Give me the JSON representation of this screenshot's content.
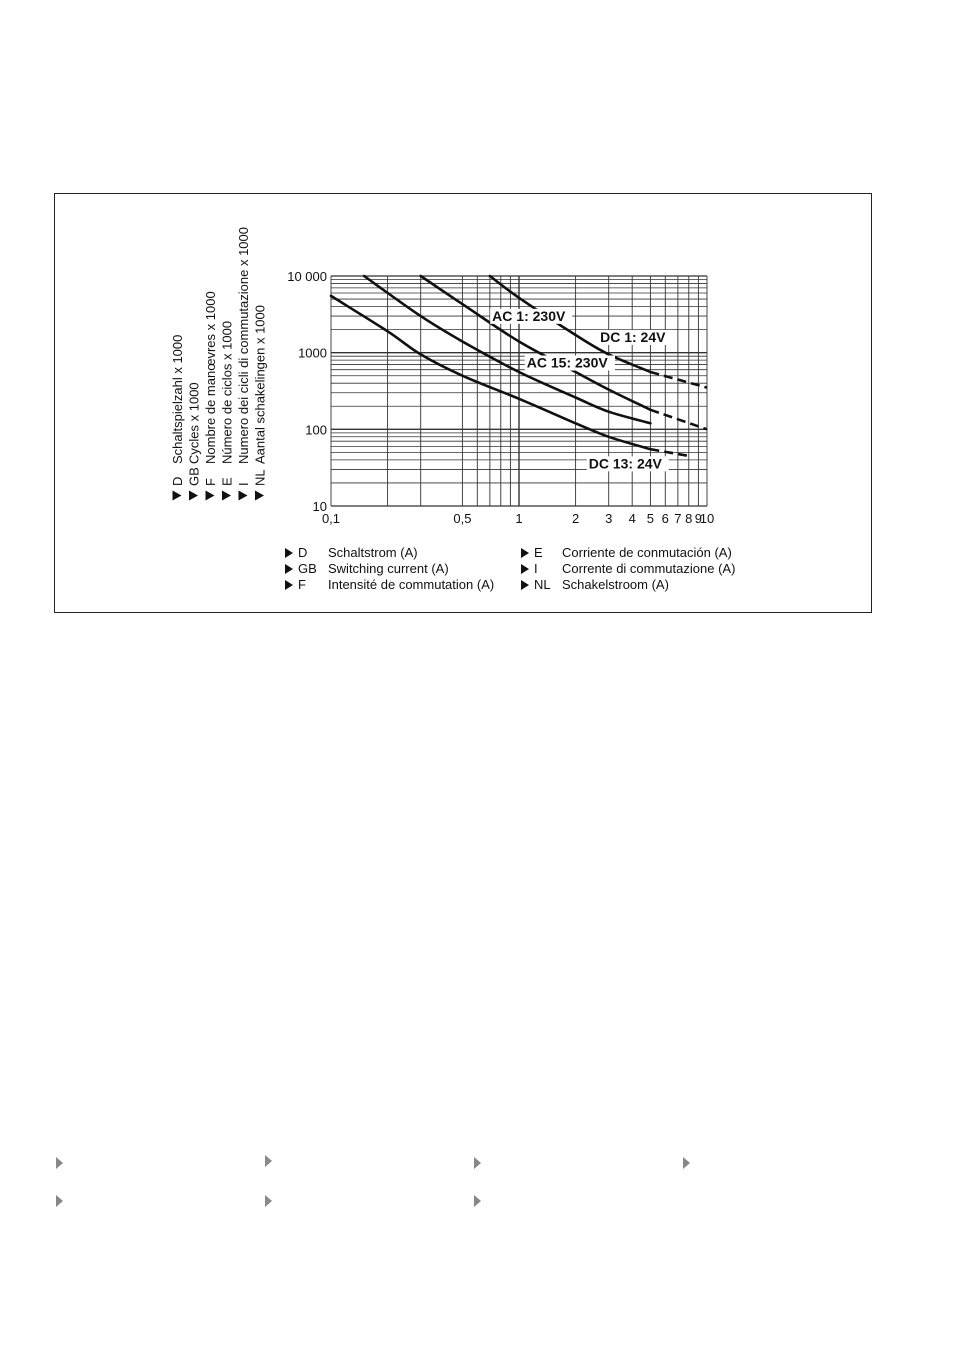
{
  "chart_data": {
    "type": "line",
    "x_scale": "log",
    "y_scale": "log",
    "xlim": [
      0.1,
      10
    ],
    "ylim": [
      10,
      10000
    ],
    "x_ticks": [
      "0,1",
      "0,5",
      "1",
      "2",
      "3",
      "4",
      "5",
      "6",
      "7",
      "8",
      "9",
      "10"
    ],
    "x_tick_values": [
      0.1,
      0.5,
      1,
      2,
      3,
      4,
      5,
      6,
      7,
      8,
      9,
      10
    ],
    "y_ticks": [
      "10 000",
      "1000",
      "100",
      "10"
    ],
    "y_tick_values": [
      10000,
      1000,
      100,
      10
    ],
    "grid": true,
    "ylabel_lines": [
      {
        "code": "D",
        "text": "Schaltspielzahl x 1000"
      },
      {
        "code": "GB",
        "text": "Cycles x 1000"
      },
      {
        "code": "F",
        "text": "Nombre de manœvres x 1000"
      },
      {
        "code": "E",
        "text": "Número de ciclos x 1000"
      },
      {
        "code": "I",
        "text": "Numero dei cicli di commutazione x 1000"
      },
      {
        "code": "NL",
        "text": "Aantal schakelingen x 1000"
      }
    ],
    "xlabel_lines": [
      {
        "code": "D",
        "text": "Schaltstrom (A)"
      },
      {
        "code": "E",
        "text": "Corriente de conmutación (A)"
      },
      {
        "code": "GB",
        "text": "Switching current (A)"
      },
      {
        "code": "I",
        "text": "Corrente di commutazione (A)"
      },
      {
        "code": "F",
        "text": "Intensité de commutation (A)"
      },
      {
        "code": "NL",
        "text": "Schakelstroom (A)"
      }
    ],
    "series": [
      {
        "name": "DC 1: 24V",
        "x": [
          0.7,
          1,
          2,
          3,
          5
        ],
        "y": [
          10000,
          5200,
          1700,
          950,
          560
        ],
        "x_dashed": [
          5,
          10
        ],
        "y_dashed": [
          560,
          350
        ]
      },
      {
        "name": "AC 1: 230V",
        "x": [
          0.3,
          0.5,
          1,
          2,
          3,
          5
        ],
        "y": [
          10000,
          4300,
          1400,
          560,
          330,
          180
        ],
        "x_dashed": [
          5,
          10
        ],
        "y_dashed": [
          180,
          100
        ]
      },
      {
        "name": "AC 15: 230V",
        "x": [
          0.15,
          0.3,
          0.5,
          1,
          2,
          3,
          5
        ],
        "y": [
          10000,
          3000,
          1400,
          560,
          260,
          170,
          120
        ]
      },
      {
        "name": "DC 13: 24V",
        "x": [
          0.1,
          0.2,
          0.3,
          0.5,
          1,
          2,
          3,
          5
        ],
        "y": [
          5500,
          1900,
          950,
          500,
          250,
          120,
          80,
          55
        ],
        "x_dashed": [
          5,
          8
        ],
        "y_dashed": [
          55,
          45
        ]
      }
    ]
  }
}
